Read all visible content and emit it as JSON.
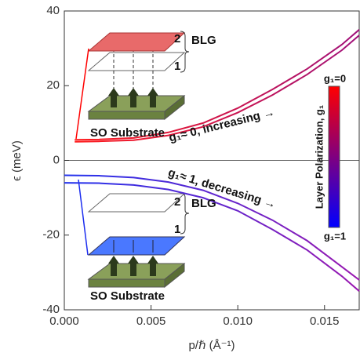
{
  "chart_data": {
    "type": "line",
    "x_label": "p/ℏ (Å⁻¹)",
    "y_label": "ϵ (meV)",
    "xlim": [
      0,
      0.017
    ],
    "ylim": [
      -40,
      40
    ],
    "xticks": [
      {
        "value": 0,
        "label": "0.000"
      },
      {
        "value": 0.005,
        "label": "0.005"
      },
      {
        "value": 0.01,
        "label": "0.010"
      },
      {
        "value": 0.015,
        "label": "0.015"
      }
    ],
    "yticks": [
      -40,
      -20,
      0,
      20,
      40
    ],
    "series": [
      {
        "colors": [
          "#ff1a1a",
          "#a0107a"
        ],
        "x": [
          0.0006,
          0.002,
          0.004,
          0.006,
          0.008,
          0.01,
          0.012,
          0.014,
          0.016,
          0.017
        ],
        "values": [
          5.5,
          5.6,
          6,
          7.5,
          10,
          14,
          19,
          24.5,
          31,
          35
        ]
      },
      {
        "colors": [
          "#ff1a1a",
          "#a0107a"
        ],
        "x": [
          0.0006,
          0.002,
          0.004,
          0.006,
          0.008,
          0.01,
          0.012,
          0.014,
          0.016,
          0.017
        ],
        "values": [
          5,
          5.1,
          5.4,
          6.7,
          9,
          12.8,
          17.5,
          23,
          29.5,
          33.5
        ]
      },
      {
        "colors": [
          "#2233ee",
          "#9a18b0"
        ],
        "x": [
          0,
          0.002,
          0.004,
          0.006,
          0.008,
          0.01,
          0.012,
          0.014,
          0.016,
          0.017
        ],
        "values": [
          -4,
          -4.1,
          -4.6,
          -5.8,
          -8,
          -11.5,
          -16,
          -21.5,
          -28.5,
          -32
        ]
      },
      {
        "colors": [
          "#2233ee",
          "#9a18b0"
        ],
        "x": [
          0,
          0.002,
          0.004,
          0.006,
          0.008,
          0.01,
          0.012,
          0.014,
          0.016,
          0.017
        ],
        "values": [
          -6,
          -6.1,
          -6.6,
          -7.8,
          -10,
          -13.5,
          -18.5,
          -24,
          -31,
          -35
        ]
      }
    ],
    "annotations": [
      "g₁≈ 0, increasing →",
      "g₁≈ 1, decreasing →"
    ],
    "colorbar": {
      "label": "Layer Polarization, g₁",
      "top": "g₁=0",
      "bottom": "g₁=1",
      "colors": [
        "#ff0000",
        "#0000ff"
      ]
    },
    "insets": [
      {
        "top_layer": "2",
        "bottom_layer": "1",
        "label": "BLG",
        "substrate": "SO Substrate"
      },
      {
        "top_layer": "2",
        "bottom_layer": "1",
        "label": "BLG",
        "substrate": "SO Substrate"
      }
    ]
  }
}
